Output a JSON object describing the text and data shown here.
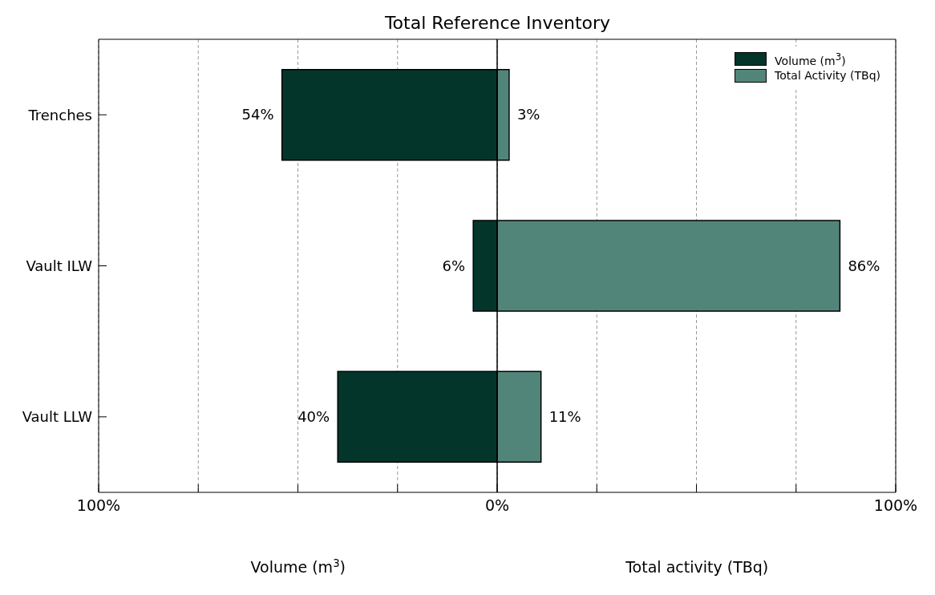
{
  "chart_data": {
    "type": "bar",
    "title": "Total Reference Inventory",
    "orientation": "horizontal",
    "categories": [
      "Trenches",
      "Vault ILW",
      "Vault LLW"
    ],
    "series": [
      {
        "name": "Volume (m$^{3}$)",
        "color": "#03352b",
        "base": [
          -54,
          -6,
          -40
        ],
        "values": [
          54,
          6,
          40
        ],
        "value_labels": [
          "54%",
          "6%",
          "40%"
        ]
      },
      {
        "name": "Total Activity (TBq)",
        "color": "#52857a",
        "values": [
          3,
          86,
          11
        ],
        "value_labels": [
          "3%",
          "86%",
          "11%"
        ]
      }
    ],
    "xlim": [
      -100,
      100
    ],
    "xticks": [
      {
        "value": -100,
        "label": "100%"
      },
      {
        "value": -75,
        "label": null
      },
      {
        "value": -50,
        "label": null
      },
      {
        "value": -25,
        "label": null
      },
      {
        "value": 0,
        "label": "0%"
      },
      {
        "value": 25,
        "label": null
      },
      {
        "value": 50,
        "label": null
      },
      {
        "value": 75,
        "label": null
      },
      {
        "value": 100,
        "label": "100%"
      }
    ],
    "xlabel": "Volume (m$^{3}$)",
    "annotations": [
      "Total activity (TBq)"
    ],
    "ref_lines": [
      {
        "axis": "x",
        "value": 0,
        "color": "#000000"
      }
    ],
    "grid": "x",
    "legend": "top right"
  }
}
